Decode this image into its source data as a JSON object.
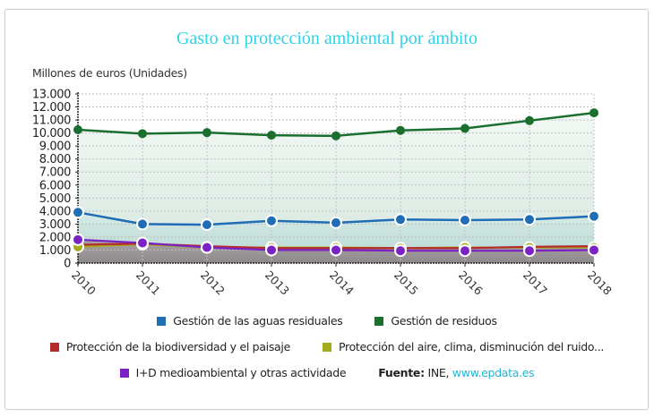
{
  "chart_data": {
    "type": "line",
    "title": "Gasto en protección ambiental por ámbito",
    "ylabel": "Millones de euros (Unidades)",
    "xlabel": "",
    "x": [
      "2010",
      "2011",
      "2012",
      "2013",
      "2014",
      "2015",
      "2016",
      "2017",
      "2018"
    ],
    "ylim": [
      0,
      13000
    ],
    "yticks": [
      0,
      1000,
      2000,
      3000,
      4000,
      5000,
      6000,
      7000,
      8000,
      9000,
      10000,
      11000,
      12000,
      13000
    ],
    "ytick_labels": [
      "0",
      "1.000",
      "2.000",
      "3.000",
      "4.000",
      "5.000",
      "6.000",
      "7.000",
      "8.000",
      "9.000",
      "10.000",
      "11.000",
      "12.000",
      "13.000"
    ],
    "grid": true,
    "legend_position": "bottom",
    "series": [
      {
        "name": "Gestión de residuos",
        "color": "#1a6f2e",
        "values": [
          10250,
          9950,
          10030,
          9830,
          9780,
          10200,
          10350,
          10950,
          11550
        ]
      },
      {
        "name": "Gestión de las aguas residuales",
        "color": "#1f6db5",
        "values": [
          3900,
          3000,
          2950,
          3250,
          3100,
          3350,
          3300,
          3350,
          3600
        ]
      },
      {
        "name": "Protección de la biodiversidad y el paisaje",
        "color": "#b52a2a",
        "values": [
          1400,
          1500,
          1300,
          1150,
          1150,
          1150,
          1150,
          1250,
          1300
        ]
      },
      {
        "name": "Protección del aire, clima, disminución del ruido...",
        "color": "#a3ad1c",
        "values": [
          1250,
          1450,
          1200,
          1200,
          1200,
          1150,
          1200,
          1200,
          1200
        ]
      },
      {
        "name": "I+D medioambiental y otras actividade",
        "color": "#7b22c4",
        "values": [
          1800,
          1550,
          1200,
          1000,
          1000,
          950,
          950,
          950,
          1000
        ]
      }
    ]
  },
  "legend": {
    "row1": [
      {
        "name": "Gestión de las aguas residuales",
        "color": "#1f6db5"
      },
      {
        "name": "Gestión de residuos",
        "color": "#1a6f2e"
      }
    ],
    "row2": [
      {
        "name": "Protección de la biodiversidad y el paisaje",
        "color": "#b52a2a"
      },
      {
        "name": "Protección del aire, clima, disminución del ruido...",
        "color": "#a3ad1c"
      }
    ],
    "row3": [
      {
        "name": "I+D medioambiental y otras actividade",
        "color": "#7b22c4"
      }
    ]
  },
  "source": {
    "label": "Fuente:",
    "text": " INE, ",
    "link": "www.epdata.es"
  }
}
